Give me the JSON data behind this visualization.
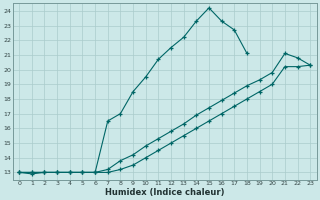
{
  "xlabel": "Humidex (Indice chaleur)",
  "background_color": "#cce8e8",
  "grid_color": "#aacccc",
  "line_color": "#006666",
  "xlim": [
    -0.5,
    23.5
  ],
  "ylim": [
    12.5,
    24.5
  ],
  "xticks": [
    0,
    1,
    2,
    3,
    4,
    5,
    6,
    7,
    8,
    9,
    10,
    11,
    12,
    13,
    14,
    15,
    16,
    17,
    18,
    19,
    20,
    21,
    22,
    23
  ],
  "yticks": [
    13,
    14,
    15,
    16,
    17,
    18,
    19,
    20,
    21,
    22,
    23,
    24
  ],
  "line1_x": [
    0,
    1,
    2,
    3,
    4,
    5,
    6,
    7,
    8,
    9,
    10,
    11,
    12,
    13,
    14,
    15,
    16,
    17,
    18
  ],
  "line1_y": [
    13,
    12.9,
    13,
    13,
    13,
    13,
    13,
    16.5,
    17,
    18.5,
    19.5,
    20.7,
    21.5,
    22.2,
    23.3,
    24.2,
    23.3,
    22.7,
    21.1
  ],
  "line2_x": [
    0,
    1,
    2,
    3,
    4,
    5,
    6,
    7,
    8,
    9,
    10,
    11,
    12,
    13,
    14,
    15,
    16,
    17,
    18,
    19,
    20,
    21,
    22,
    23
  ],
  "line2_y": [
    13,
    13,
    13,
    13,
    13,
    13,
    13,
    13.2,
    13.8,
    14.2,
    14.8,
    15.3,
    15.8,
    16.3,
    16.9,
    17.4,
    17.9,
    18.4,
    18.9,
    19.3,
    19.8,
    21.1,
    20.8,
    20.3
  ],
  "line3_x": [
    0,
    1,
    2,
    3,
    4,
    5,
    6,
    7,
    8,
    9,
    10,
    11,
    12,
    13,
    14,
    15,
    16,
    17,
    18,
    19,
    20,
    21,
    22,
    23
  ],
  "line3_y": [
    13,
    13,
    13,
    13,
    13,
    13,
    13,
    13,
    13.2,
    13.5,
    14.0,
    14.5,
    15.0,
    15.5,
    16.0,
    16.5,
    17.0,
    17.5,
    18.0,
    18.5,
    19.0,
    20.2,
    20.2,
    20.3
  ]
}
